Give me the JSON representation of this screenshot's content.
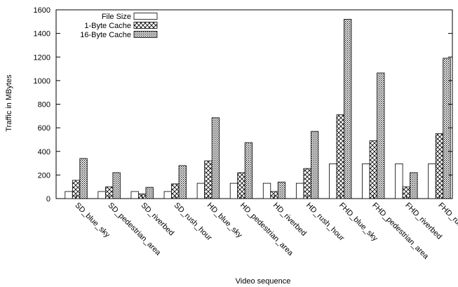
{
  "chart_data": {
    "type": "bar",
    "xlabel": "Video sequence",
    "ylabel": "Traffic in MBytes",
    "ylim": [
      0,
      1600
    ],
    "yticks": [
      0,
      200,
      400,
      600,
      800,
      1000,
      1200,
      1400,
      1600
    ],
    "grid": false,
    "legend_position": "top-left",
    "categories": [
      "SD_blue_sky",
      "SD_pedestrian_area",
      "SD_riverbed",
      "SD_rush_hour",
      "HD_blue_sky",
      "HD_pedestrian_area",
      "HD_riverbed",
      "HD_rush_hour",
      "FHD_blue_sky",
      "FHD_pedestrian_area",
      "FHD_riverbed",
      "FHD_rush_hour"
    ],
    "series": [
      {
        "name": "File Size",
        "pattern": "solid-white",
        "values": [
          60,
          60,
          60,
          60,
          130,
          130,
          130,
          130,
          295,
          295,
          295,
          295
        ]
      },
      {
        "name": "1-Byte Cache",
        "pattern": "cross-hatch",
        "values": [
          155,
          100,
          40,
          125,
          320,
          220,
          60,
          255,
          710,
          490,
          100,
          550
        ]
      },
      {
        "name": "16-Byte Cache",
        "pattern": "dense-dots",
        "values": [
          340,
          220,
          95,
          280,
          685,
          475,
          140,
          570,
          1520,
          1065,
          220,
          1190
        ]
      }
    ]
  }
}
